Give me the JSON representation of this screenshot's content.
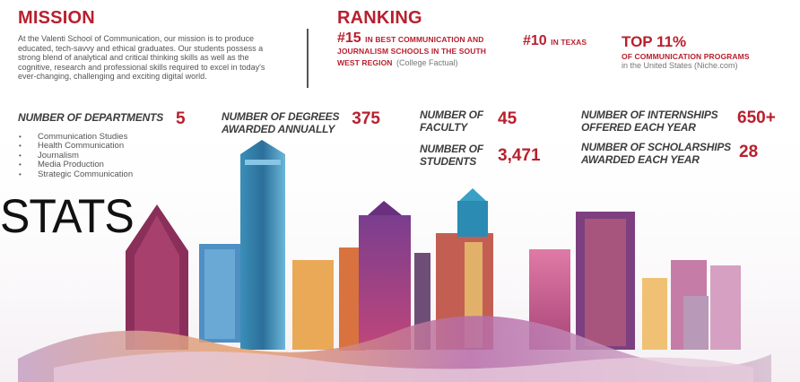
{
  "mission": {
    "heading": "MISSION",
    "text": "At the Valenti School of Communication, our mission is to produce educated, tech-savvy and ethical graduates. Our students possess a strong blend of analytical and critical thinking skills as well as the cognitive, research and professional skills required to excel in today's ever-changing, challenging and exciting digital world."
  },
  "ranking": {
    "heading": "RANKING",
    "items": [
      {
        "number": "#15",
        "caption": "IN BEST COMMUNICATION AND JOURNALISM SCHOOLS IN THE SOUTH WEST REGION",
        "source": "(College Factual)"
      },
      {
        "number": "#10",
        "caption": "IN TEXAS",
        "source": ""
      },
      {
        "number": "TOP 11%",
        "caption": "OF COMMUNICATION PROGRAMS",
        "source": "in the United States (Niche.com)"
      }
    ]
  },
  "stats": {
    "departments": {
      "label": "NUMBER OF DEPARTMENTS",
      "value": "5",
      "list": [
        "Communication Studies",
        "Health Communication",
        "Journalism",
        "Media Production",
        "Strategic Communication"
      ]
    },
    "degrees": {
      "label_line1": "NUMBER OF DEGREES",
      "label_line2": "AWARDED ANNUALLY",
      "value": "375"
    },
    "faculty": {
      "label_line1": "NUMBER OF",
      "label_line2": "FACULTY",
      "value": "45"
    },
    "students": {
      "label_line1": "NUMBER OF",
      "label_line2": "STUDENTS",
      "value": "3,471"
    },
    "internships": {
      "label_line1": "NUMBER OF INTERNSHIPS",
      "label_line2": "OFFERED EACH YEAR",
      "value": "650+"
    },
    "scholarships": {
      "label_line1": "NUMBER OF SCHOLARSHIPS",
      "label_line2": "AWARDED EACH YEAR",
      "value": "28"
    }
  },
  "stats_title": "STATS",
  "colors": {
    "accent": "#b8202e",
    "text": "#444444"
  }
}
